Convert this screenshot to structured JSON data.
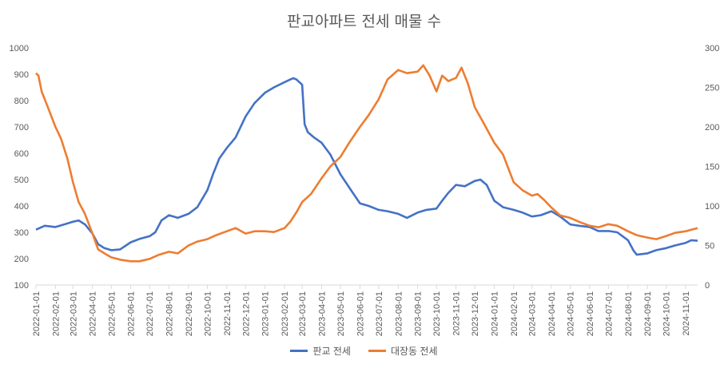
{
  "chart_data": {
    "type": "line",
    "title": "판교아파트 전세 매물 수",
    "xlabel": "",
    "ylabel": "",
    "y_left": {
      "min": 100,
      "max": 1000,
      "ticks": [
        100,
        200,
        300,
        400,
        500,
        600,
        700,
        800,
        900,
        1000
      ]
    },
    "y_right": {
      "min": 0,
      "max": 300,
      "ticks": [
        0,
        50,
        100,
        150,
        200,
        250,
        300
      ]
    },
    "x_ticks": [
      "2022-01-01",
      "2022-02-01",
      "2022-03-01",
      "2022-04-01",
      "2022-05-01",
      "2022-06-01",
      "2022-07-01",
      "2022-08-01",
      "2022-09-01",
      "2022-10-01",
      "2022-11-01",
      "2022-12-01",
      "2023-01-01",
      "2023-02-01",
      "2023-03-01",
      "2023-04-01",
      "2023-05-01",
      "2023-06-01",
      "2023-07-01",
      "2023-08-01",
      "2023-09-01",
      "2023-10-01",
      "2023-11-01",
      "2023-12-01",
      "2024-01-01",
      "2024-02-01",
      "2024-03-01",
      "2024-04-01",
      "2024-05-01",
      "2024-06-01",
      "2024-07-01",
      "2024-08-01",
      "2024-09-01",
      "2024-10-01",
      "2024-11-01"
    ],
    "x_range": [
      "2022-01-01",
      "2024-11-20"
    ],
    "grid": false,
    "legend_position": "bottom",
    "series": [
      {
        "name": "판교 전세",
        "axis": "left",
        "color": "#4472C4",
        "points": [
          [
            "2022-01-01",
            310
          ],
          [
            "2022-01-15",
            325
          ],
          [
            "2022-02-01",
            320
          ],
          [
            "2022-02-15",
            330
          ],
          [
            "2022-03-01",
            340
          ],
          [
            "2022-03-10",
            345
          ],
          [
            "2022-03-20",
            330
          ],
          [
            "2022-04-01",
            295
          ],
          [
            "2022-04-10",
            255
          ],
          [
            "2022-04-20",
            240
          ],
          [
            "2022-05-01",
            232
          ],
          [
            "2022-05-15",
            235
          ],
          [
            "2022-06-01",
            262
          ],
          [
            "2022-06-15",
            275
          ],
          [
            "2022-07-01",
            285
          ],
          [
            "2022-07-10",
            300
          ],
          [
            "2022-07-20",
            345
          ],
          [
            "2022-08-01",
            365
          ],
          [
            "2022-08-15",
            355
          ],
          [
            "2022-09-01",
            370
          ],
          [
            "2022-09-15",
            395
          ],
          [
            "2022-10-01",
            460
          ],
          [
            "2022-10-10",
            520
          ],
          [
            "2022-10-20",
            580
          ],
          [
            "2022-11-01",
            620
          ],
          [
            "2022-11-15",
            660
          ],
          [
            "2022-12-01",
            740
          ],
          [
            "2022-12-15",
            790
          ],
          [
            "2023-01-01",
            830
          ],
          [
            "2023-01-15",
            850
          ],
          [
            "2023-02-01",
            870
          ],
          [
            "2023-02-10",
            880
          ],
          [
            "2023-02-15",
            885
          ],
          [
            "2023-02-20",
            880
          ],
          [
            "2023-03-01",
            860
          ],
          [
            "2023-03-05",
            710
          ],
          [
            "2023-03-10",
            680
          ],
          [
            "2023-03-20",
            660
          ],
          [
            "2023-04-01",
            640
          ],
          [
            "2023-04-15",
            595
          ],
          [
            "2023-05-01",
            520
          ],
          [
            "2023-05-15",
            470
          ],
          [
            "2023-06-01",
            410
          ],
          [
            "2023-06-15",
            400
          ],
          [
            "2023-07-01",
            385
          ],
          [
            "2023-07-15",
            380
          ],
          [
            "2023-08-01",
            370
          ],
          [
            "2023-08-15",
            355
          ],
          [
            "2023-09-01",
            375
          ],
          [
            "2023-09-15",
            385
          ],
          [
            "2023-10-01",
            390
          ],
          [
            "2023-10-10",
            420
          ],
          [
            "2023-10-20",
            450
          ],
          [
            "2023-11-01",
            480
          ],
          [
            "2023-11-15",
            475
          ],
          [
            "2023-12-01",
            495
          ],
          [
            "2023-12-10",
            500
          ],
          [
            "2023-12-20",
            480
          ],
          [
            "2024-01-01",
            420
          ],
          [
            "2024-01-15",
            395
          ],
          [
            "2024-02-01",
            385
          ],
          [
            "2024-02-15",
            375
          ],
          [
            "2024-03-01",
            360
          ],
          [
            "2024-03-15",
            365
          ],
          [
            "2024-04-01",
            380
          ],
          [
            "2024-04-15",
            360
          ],
          [
            "2024-05-01",
            330
          ],
          [
            "2024-05-15",
            325
          ],
          [
            "2024-06-01",
            320
          ],
          [
            "2024-06-15",
            305
          ],
          [
            "2024-07-01",
            305
          ],
          [
            "2024-07-15",
            300
          ],
          [
            "2024-08-01",
            270
          ],
          [
            "2024-08-10",
            230
          ],
          [
            "2024-08-15",
            215
          ],
          [
            "2024-09-01",
            220
          ],
          [
            "2024-09-15",
            232
          ],
          [
            "2024-10-01",
            240
          ],
          [
            "2024-10-15",
            250
          ],
          [
            "2024-11-01",
            260
          ],
          [
            "2024-11-10",
            270
          ],
          [
            "2024-11-20",
            268
          ]
        ]
      },
      {
        "name": "대장동 전세",
        "axis": "right",
        "color": "#ED7D31",
        "points": [
          [
            "2022-01-01",
            268
          ],
          [
            "2022-01-05",
            265
          ],
          [
            "2022-01-10",
            245
          ],
          [
            "2022-01-20",
            225
          ],
          [
            "2022-02-01",
            200
          ],
          [
            "2022-02-10",
            185
          ],
          [
            "2022-02-20",
            160
          ],
          [
            "2022-03-01",
            130
          ],
          [
            "2022-03-10",
            105
          ],
          [
            "2022-03-20",
            90
          ],
          [
            "2022-04-01",
            65
          ],
          [
            "2022-04-10",
            45
          ],
          [
            "2022-04-20",
            40
          ],
          [
            "2022-05-01",
            35
          ],
          [
            "2022-05-15",
            32
          ],
          [
            "2022-06-01",
            30
          ],
          [
            "2022-06-15",
            30
          ],
          [
            "2022-07-01",
            33
          ],
          [
            "2022-07-15",
            38
          ],
          [
            "2022-08-01",
            42
          ],
          [
            "2022-08-15",
            40
          ],
          [
            "2022-09-01",
            50
          ],
          [
            "2022-09-15",
            55
          ],
          [
            "2022-10-01",
            58
          ],
          [
            "2022-10-15",
            63
          ],
          [
            "2022-11-01",
            68
          ],
          [
            "2022-11-15",
            72
          ],
          [
            "2022-12-01",
            65
          ],
          [
            "2022-12-15",
            68
          ],
          [
            "2023-01-01",
            68
          ],
          [
            "2023-01-15",
            67
          ],
          [
            "2023-02-01",
            72
          ],
          [
            "2023-02-10",
            80
          ],
          [
            "2023-02-20",
            92
          ],
          [
            "2023-03-01",
            105
          ],
          [
            "2023-03-15",
            115
          ],
          [
            "2023-04-01",
            135
          ],
          [
            "2023-04-15",
            150
          ],
          [
            "2023-05-01",
            162
          ],
          [
            "2023-05-15",
            180
          ],
          [
            "2023-06-01",
            200
          ],
          [
            "2023-06-15",
            215
          ],
          [
            "2023-07-01",
            235
          ],
          [
            "2023-07-15",
            260
          ],
          [
            "2023-08-01",
            272
          ],
          [
            "2023-08-15",
            268
          ],
          [
            "2023-09-01",
            270
          ],
          [
            "2023-09-10",
            278
          ],
          [
            "2023-09-20",
            265
          ],
          [
            "2023-10-01",
            245
          ],
          [
            "2023-10-10",
            265
          ],
          [
            "2023-10-20",
            258
          ],
          [
            "2023-11-01",
            262
          ],
          [
            "2023-11-10",
            275
          ],
          [
            "2023-11-20",
            255
          ],
          [
            "2023-12-01",
            225
          ],
          [
            "2023-12-15",
            205
          ],
          [
            "2024-01-01",
            180
          ],
          [
            "2024-01-15",
            165
          ],
          [
            "2024-02-01",
            130
          ],
          [
            "2024-02-15",
            120
          ],
          [
            "2024-03-01",
            113
          ],
          [
            "2024-03-10",
            115
          ],
          [
            "2024-03-20",
            108
          ],
          [
            "2024-04-01",
            98
          ],
          [
            "2024-04-15",
            88
          ],
          [
            "2024-05-01",
            85
          ],
          [
            "2024-05-15",
            80
          ],
          [
            "2024-06-01",
            75
          ],
          [
            "2024-06-15",
            73
          ],
          [
            "2024-07-01",
            77
          ],
          [
            "2024-07-15",
            75
          ],
          [
            "2024-08-01",
            68
          ],
          [
            "2024-08-15",
            63
          ],
          [
            "2024-09-01",
            60
          ],
          [
            "2024-09-15",
            58
          ],
          [
            "2024-10-01",
            62
          ],
          [
            "2024-10-15",
            66
          ],
          [
            "2024-11-01",
            68
          ],
          [
            "2024-11-10",
            70
          ],
          [
            "2024-11-20",
            72
          ]
        ]
      }
    ]
  }
}
